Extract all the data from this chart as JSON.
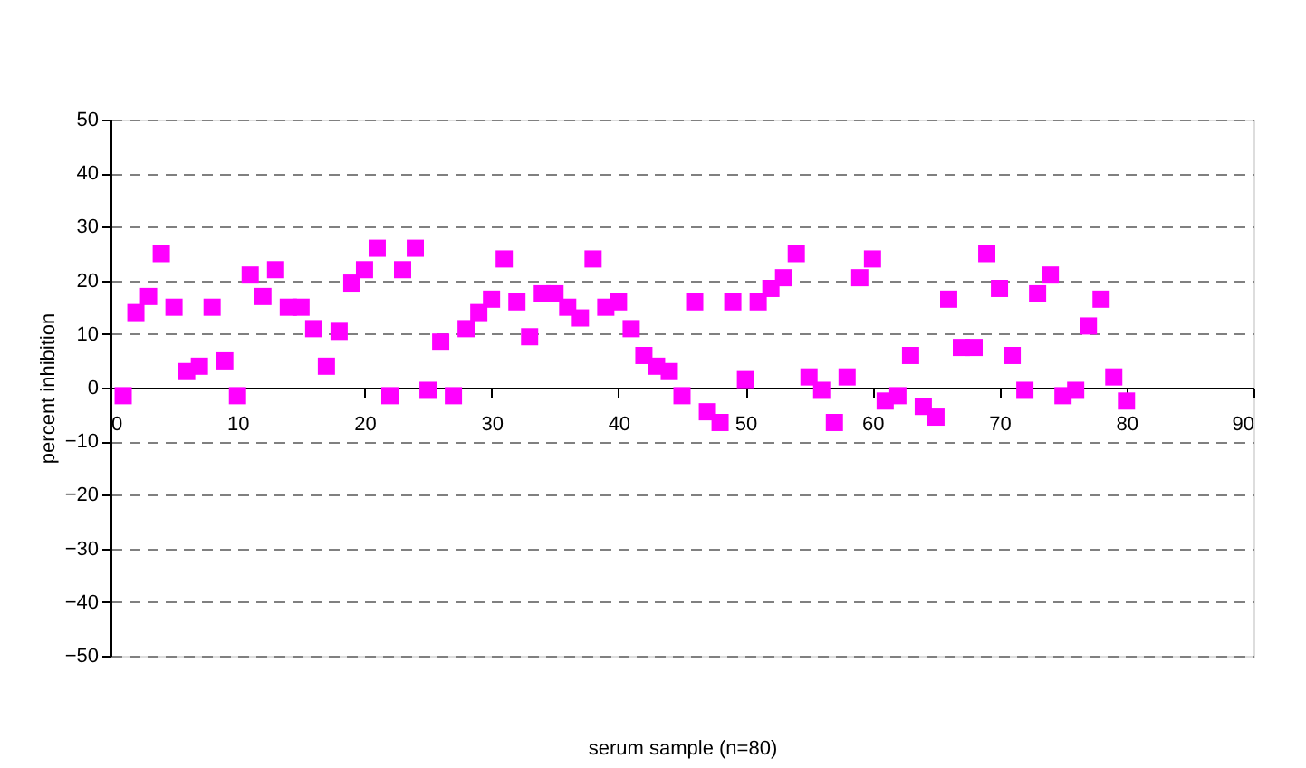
{
  "chart_data": {
    "type": "scatter",
    "xlabel": "serum sample (n=80)",
    "ylabel": "percent inhibition",
    "x": [
      1,
      2,
      3,
      4,
      5,
      6,
      7,
      8,
      9,
      10,
      11,
      12,
      13,
      14,
      15,
      16,
      17,
      18,
      19,
      20,
      21,
      22,
      23,
      24,
      25,
      26,
      27,
      28,
      29,
      30,
      31,
      32,
      33,
      34,
      35,
      36,
      37,
      38,
      39,
      40,
      41,
      42,
      43,
      44,
      45,
      46,
      47,
      48,
      49,
      50,
      51,
      52,
      53,
      54,
      55,
      56,
      57,
      58,
      59,
      60,
      61,
      62,
      63,
      64,
      65,
      66,
      67,
      68,
      69,
      70,
      71,
      72,
      73,
      74,
      75,
      76,
      77,
      78,
      79,
      80
    ],
    "series": [
      {
        "color": "#ff00ff",
        "values": [
          -1.5,
          14,
          17,
          25,
          15,
          3,
          4,
          15,
          5,
          -1.5,
          21,
          17,
          22,
          15,
          15,
          11,
          4,
          10.5,
          19.5,
          22,
          26,
          -1.5,
          22,
          26,
          -0.5,
          8.5,
          -1.5,
          11,
          14,
          16.5,
          24,
          16,
          9.5,
          17.5,
          17.5,
          15,
          13,
          24,
          15,
          16,
          11,
          6,
          4,
          3,
          -1.5,
          16,
          -4.5,
          -6.5,
          16,
          1.5,
          16,
          18.5,
          20.5,
          25,
          2,
          -0.5,
          -6.5,
          2,
          20.5,
          24,
          -2.5,
          -1.5,
          6,
          -3.5,
          -5.5,
          16.5,
          7.5,
          7.5,
          25,
          18.5,
          6,
          -0.5,
          17.5,
          21,
          -1.5,
          -0.5,
          11.5,
          16.5,
          2,
          -2.5
        ]
      }
    ],
    "xlim": [
      0,
      90
    ],
    "xticks": [
      0,
      10,
      20,
      30,
      40,
      50,
      60,
      70,
      80,
      90
    ],
    "ylim": [
      -50,
      50
    ],
    "yticks": [
      -50,
      -40,
      -30,
      -20,
      -10,
      0,
      10,
      20,
      30,
      40,
      50
    ],
    "grid": "y",
    "legend": false,
    "marker": "square"
  }
}
